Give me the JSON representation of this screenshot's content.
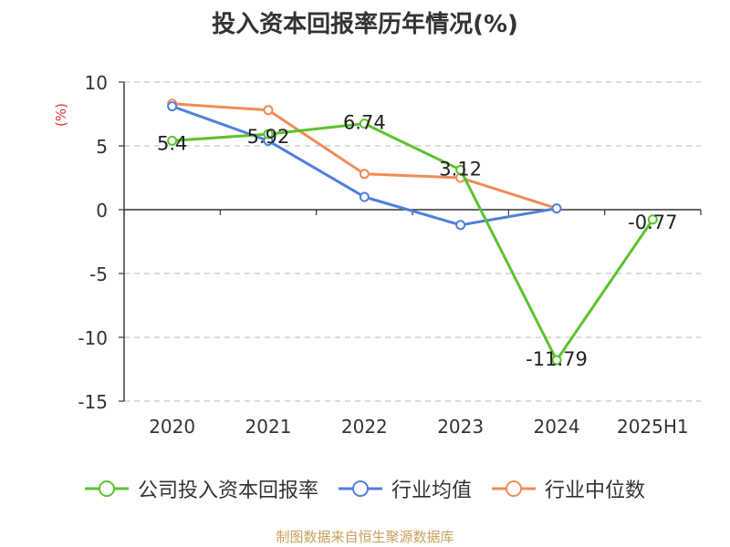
{
  "chart_data": {
    "type": "line",
    "title": "投入资本回报率历年情况(%)",
    "ylabel": "(%)",
    "categories": [
      "2020",
      "2021",
      "2022",
      "2023",
      "2024",
      "2025H1"
    ],
    "ylim": [
      -15,
      10
    ],
    "yticks": [
      10,
      5,
      0,
      -5,
      -10,
      -15
    ],
    "grid": true,
    "legend_position": "bottom",
    "series": [
      {
        "name": "公司投入资本回报率",
        "color": "#5cc22d",
        "values": [
          5.4,
          5.92,
          6.74,
          3.12,
          -11.79,
          -0.77
        ],
        "labels": [
          "5.4",
          "5.92",
          "6.74",
          "3.12",
          "-11.79",
          "-0.77"
        ]
      },
      {
        "name": "行业均值",
        "color": "#4f7fdc",
        "values": [
          8.1,
          5.4,
          1.0,
          -1.2,
          0.1,
          null
        ]
      },
      {
        "name": "行业中位数",
        "color": "#f28c55",
        "values": [
          8.3,
          7.8,
          2.8,
          2.5,
          0.1,
          null
        ]
      }
    ]
  },
  "source": "制图数据来自恒生聚源数据库"
}
